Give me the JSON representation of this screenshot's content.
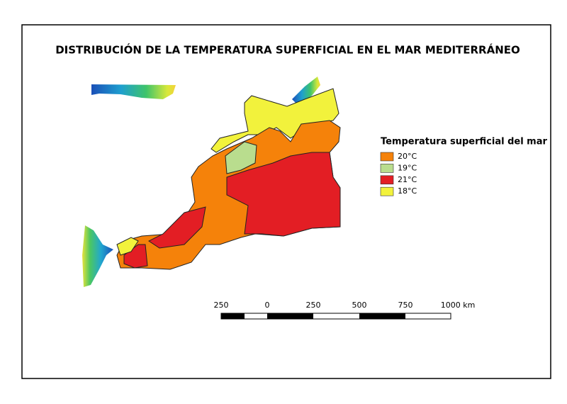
{
  "title": "DISTRIBUCIÓN DE LA TEMPERATURA SUPERFICIAL EN EL MAR MEDITERRÁNEO",
  "legend": {
    "title": "Temperatura superficial del mar",
    "items": [
      {
        "label": "20°C",
        "color": "#f5820a"
      },
      {
        "label": "19°C",
        "color": "#b9dd8e"
      },
      {
        "label": "21°C",
        "color": "#e31e24"
      },
      {
        "label": "18°C",
        "color": "#f2f23c"
      }
    ]
  },
  "scale_bar": {
    "labels": [
      "250",
      "0",
      "250",
      "500",
      "750",
      "1000 km"
    ]
  }
}
